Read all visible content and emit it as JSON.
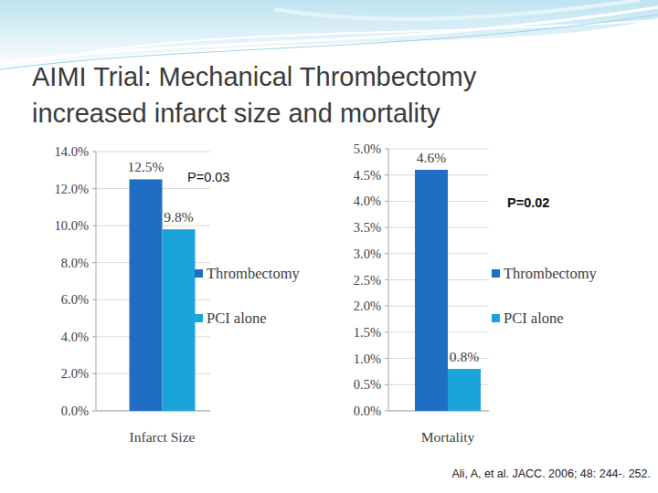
{
  "title": "AIMI Trial: Mechanical Thrombectomy\nincreased infarct size and mortality",
  "source": "Ali, A, et al. JACC. 2006; 48: 244-. 252.",
  "chart_data": [
    {
      "type": "bar",
      "categories": [
        "Infarct Size"
      ],
      "series": [
        {
          "name": "Thrombectomy",
          "color": "#1f6ec4",
          "values": [
            12.5
          ],
          "value_labels": [
            "12.5%"
          ]
        },
        {
          "name": "PCI alone",
          "color": "#1ba3db",
          "values": [
            9.8
          ],
          "value_labels": [
            "9.8%"
          ]
        }
      ],
      "ylim": [
        0,
        14
      ],
      "yticks": [
        {
          "value": 0,
          "label": "0.0%"
        },
        {
          "value": 2,
          "label": "2.0%"
        },
        {
          "value": 4,
          "label": "4.0%"
        },
        {
          "value": 6,
          "label": "6.0%"
        },
        {
          "value": 8,
          "label": "8.0%"
        },
        {
          "value": 10,
          "label": "10.0%"
        },
        {
          "value": 12,
          "label": "12.0%"
        },
        {
          "value": 14,
          "label": "14.0%"
        }
      ],
      "grid": true,
      "legend": "right",
      "data_labels": true,
      "annotations": [
        {
          "text": "P=0.03"
        }
      ]
    },
    {
      "type": "bar",
      "categories": [
        "Mortality"
      ],
      "series": [
        {
          "name": "Thrombectomy",
          "color": "#1f6ec4",
          "values": [
            4.6
          ],
          "value_labels": [
            "4.6%"
          ]
        },
        {
          "name": "PCI alone",
          "color": "#1ba3db",
          "values": [
            0.8
          ],
          "value_labels": [
            "0.8%"
          ]
        }
      ],
      "ylim": [
        0,
        5
      ],
      "yticks": [
        {
          "value": 0,
          "label": "0.0%"
        },
        {
          "value": 0.5,
          "label": "0.5%"
        },
        {
          "value": 1,
          "label": "1.0%"
        },
        {
          "value": 1.5,
          "label": "1.5%"
        },
        {
          "value": 2,
          "label": "2.0%"
        },
        {
          "value": 2.5,
          "label": "2.5%"
        },
        {
          "value": 3,
          "label": "3.0%"
        },
        {
          "value": 3.5,
          "label": "3.5%"
        },
        {
          "value": 4,
          "label": "4.0%"
        },
        {
          "value": 4.5,
          "label": "4.5%"
        },
        {
          "value": 5,
          "label": "5.0%"
        }
      ],
      "grid": true,
      "legend": "right",
      "data_labels": true,
      "annotations": [
        {
          "text": "P=0.02"
        }
      ]
    }
  ]
}
